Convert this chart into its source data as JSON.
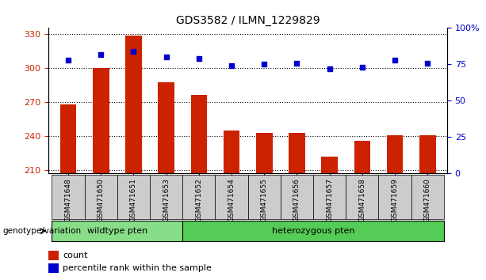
{
  "title": "GDS3582 / ILMN_1229829",
  "samples": [
    "GSM471648",
    "GSM471650",
    "GSM471651",
    "GSM471653",
    "GSM471652",
    "GSM471654",
    "GSM471655",
    "GSM471656",
    "GSM471657",
    "GSM471658",
    "GSM471659",
    "GSM471660"
  ],
  "counts": [
    268,
    300,
    328,
    287,
    276,
    245,
    243,
    243,
    222,
    236,
    241,
    241
  ],
  "percentile_ranks": [
    78,
    82,
    84,
    80,
    79,
    74,
    75,
    76,
    72,
    73,
    78,
    76
  ],
  "bar_color": "#cc2200",
  "dot_color": "#0000cc",
  "wildtype_samples": 4,
  "heterozygous_samples": 8,
  "wildtype_label": "wildtype pten",
  "heterozygous_label": "heterozygous pten",
  "genotype_label": "genotype/variation",
  "ylim_left": [
    207,
    335
  ],
  "yticks_left": [
    210,
    240,
    270,
    300,
    330
  ],
  "ylim_right": [
    0,
    100
  ],
  "yticks_right": [
    0,
    25,
    50,
    75,
    100
  ],
  "legend_count_label": "count",
  "legend_percentile_label": "percentile rank within the sample",
  "wildtype_color": "#88dd88",
  "heterozygous_color": "#55cc55",
  "sample_box_color": "#cccccc",
  "grid_color": "#000000",
  "background_color": "#ffffff"
}
